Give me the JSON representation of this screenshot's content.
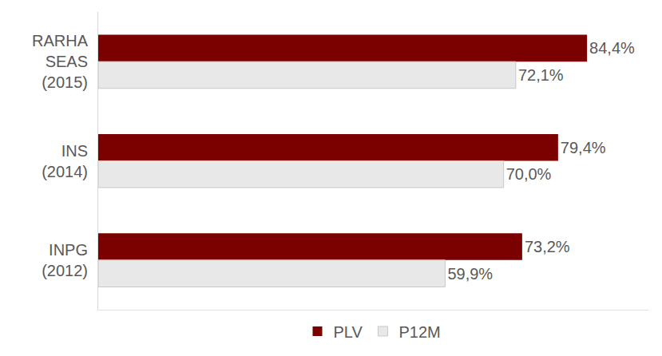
{
  "chart_data": {
    "type": "bar",
    "orientation": "horizontal",
    "categories": [
      "RARHA\nSEAS\n(2015)",
      "INS\n(2014)",
      "INPG\n(2012)"
    ],
    "series": [
      {
        "name": "PLV",
        "color": "#7b0000",
        "values": [
          84.4,
          79.4,
          73.2
        ],
        "value_labels": [
          "84,4%",
          "79,4%",
          "73,2%"
        ]
      },
      {
        "name": "P12M",
        "color": "#e8e8e8",
        "values": [
          72.1,
          70.0,
          59.9
        ],
        "value_labels": [
          "72,1%",
          "70,0%",
          "59,9%"
        ]
      }
    ],
    "xlim": [
      0,
      95
    ],
    "xticks": [],
    "grid": false,
    "data_labels": true,
    "legend": "bottom",
    "tick_labels": "y"
  }
}
